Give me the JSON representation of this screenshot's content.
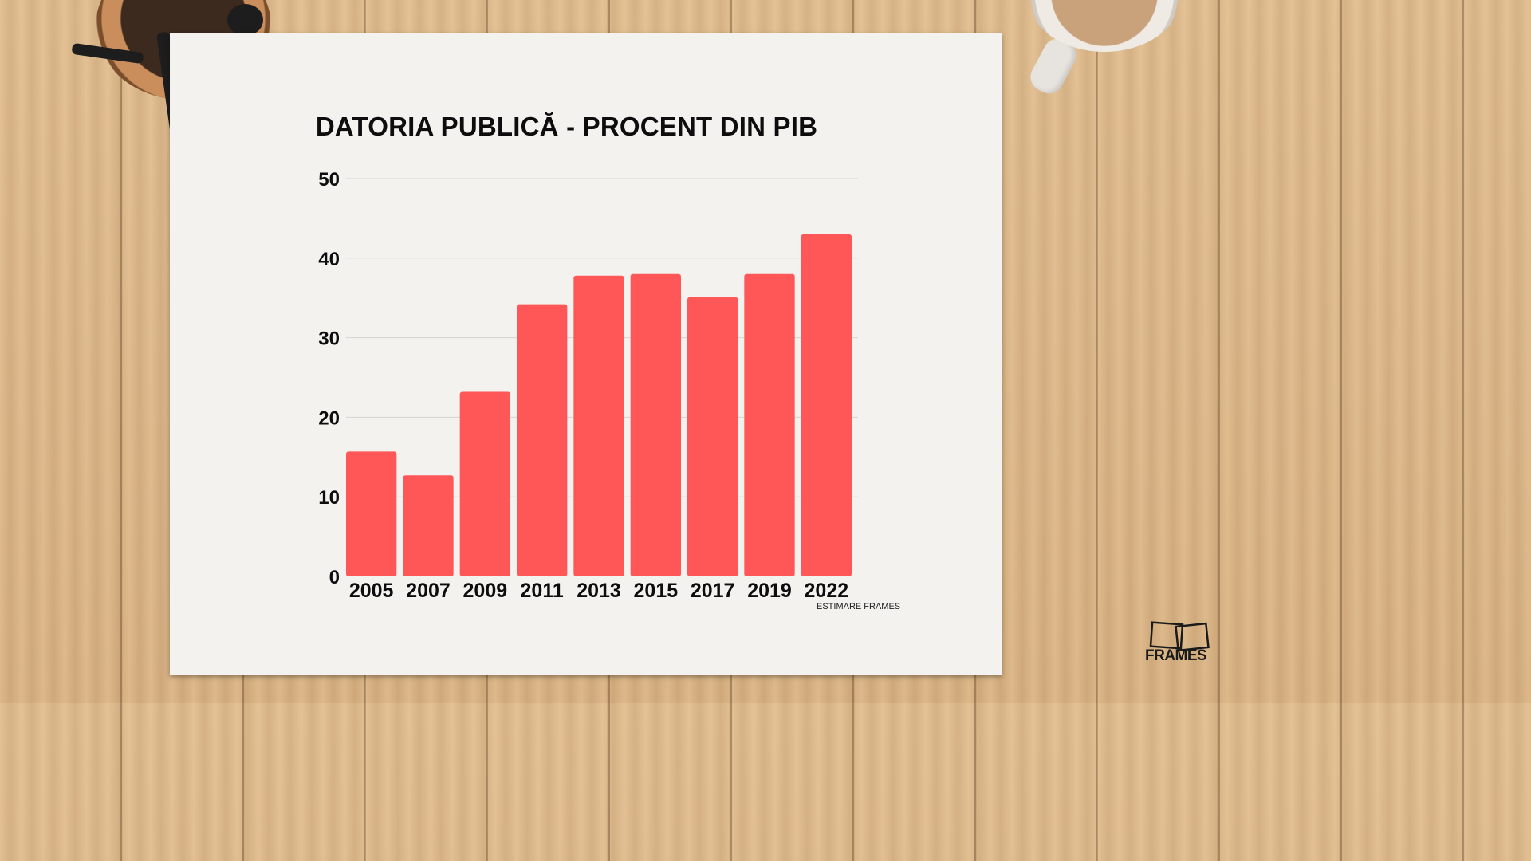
{
  "chart_data": {
    "type": "bar",
    "title": "DATORIA PUBLICĂ - PROCENT DIN PIB",
    "categories": [
      "2005",
      "2007",
      "2009",
      "2011",
      "2013",
      "2015",
      "2017",
      "2019",
      "2022"
    ],
    "values": [
      15.7,
      12.7,
      23.2,
      34.2,
      37.8,
      38.0,
      35.1,
      38.0,
      43.0
    ],
    "xlabel": "",
    "ylabel": "",
    "ylim": [
      0,
      50
    ],
    "yticks": [
      "0",
      "10",
      "20",
      "30",
      "40",
      "50"
    ],
    "grid": true,
    "bar_color": "#ff5757",
    "note": "ESTIMARE FRAMES"
  },
  "logo": {
    "text": "FRAMES"
  }
}
